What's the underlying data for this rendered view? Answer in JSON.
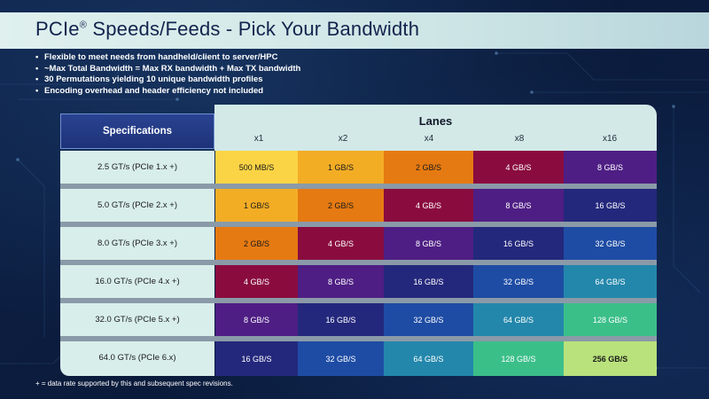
{
  "header": {
    "title": "PCIe",
    "title_sup": "®",
    "title_rest": " Speeds/Feeds - Pick Your Bandwidth"
  },
  "bullets": [
    "Flexible to meet needs from handheld/client to server/HPC",
    "~Max Total Bandwidth = Max RX bandwidth + Max TX bandwidth",
    "30 Permutations yielding 10 unique bandwidth profiles",
    "Encoding overhead and header efficiency not included"
  ],
  "table": {
    "specs_header": "Specifications",
    "lanes_header": "Lanes",
    "lanes": [
      "x1",
      "x2",
      "x4",
      "x8",
      "x16"
    ],
    "rows": [
      {
        "spec": "2.5 GT/s (PCIe 1.x +)",
        "cells": [
          "500 MB/S",
          "1 GB/S",
          "2 GB/S",
          "4 GB/S",
          "8 GB/S"
        ]
      },
      {
        "spec": "5.0 GT/s (PCIe 2.x +)",
        "cells": [
          "1 GB/S",
          "2 GB/S",
          "4 GB/S",
          "8 GB/S",
          "16 GB/S"
        ]
      },
      {
        "spec": "8.0 GT/s (PCIe 3.x +)",
        "cells": [
          "2 GB/S",
          "4 GB/S",
          "8 GB/S",
          "16 GB/S",
          "32 GB/S"
        ]
      },
      {
        "spec": "16.0 GT/s (PCIe 4.x +)",
        "cells": [
          "4 GB/S",
          "8 GB/S",
          "16 GB/S",
          "32 GB/S",
          "64 GB/S"
        ]
      },
      {
        "spec": "32.0 GT/s (PCIe 5.x +)",
        "cells": [
          "8 GB/S",
          "16 GB/S",
          "32 GB/S",
          "64 GB/S",
          "128 GB/S"
        ]
      },
      {
        "spec": "64.0 GT/s (PCIe 6.x)",
        "cells": [
          "16 GB/S",
          "32 GB/S",
          "64 GB/S",
          "128 GB/S",
          "256 GB/S"
        ]
      }
    ]
  },
  "bandwidth_colors": {
    "500 MB/S": "#fbd445",
    "1 GB/S": "#f3ad25",
    "2 GB/S": "#e67a12",
    "4 GB/S": "#8a0c3f",
    "8 GB/S": "#4e1e84",
    "16 GB/S": "#24287c",
    "32 GB/S": "#1e4ca4",
    "64 GB/S": "#2387ab",
    "128 GB/S": "#3bbf89",
    "256 GB/S": "#b9e27c"
  },
  "footnote": "+ = data rate supported by this and subsequent spec revisions."
}
